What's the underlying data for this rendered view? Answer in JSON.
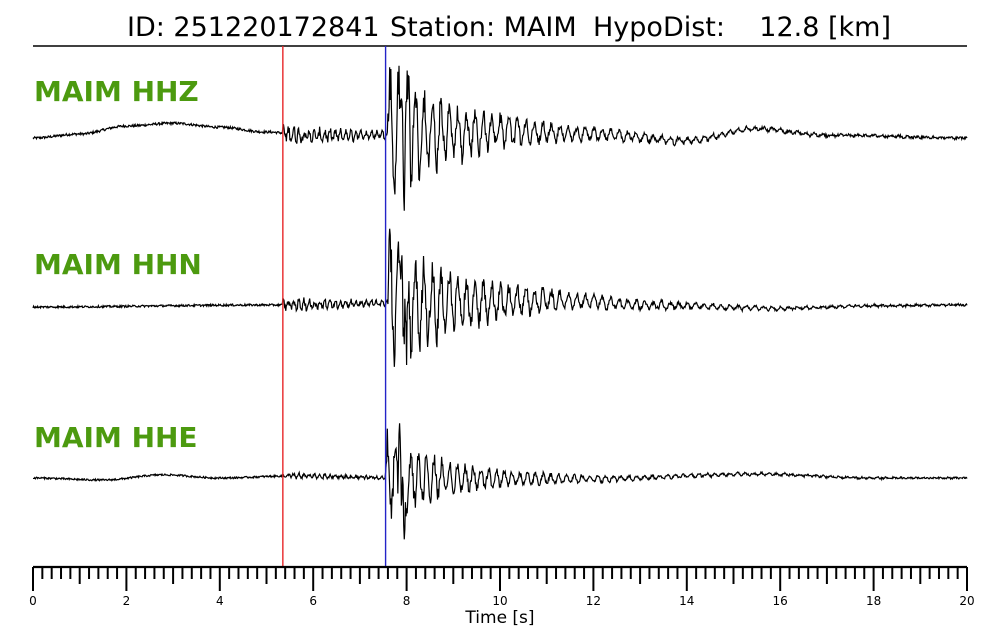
{
  "title": {
    "id_text": "ID: 251220172841",
    "station_text": "Station: MAIM",
    "hypodist_text": "HypoDist:    12.8 [km]"
  },
  "colors": {
    "label": "#4c9a0f",
    "trace": "#000000",
    "p_pick": "#e8262a",
    "s_pick": "#2323c8"
  },
  "chart_data": {
    "type": "line",
    "xlabel": "Time [s]",
    "xlim": [
      0,
      20
    ],
    "major_ticks": [
      0,
      2,
      4,
      6,
      8,
      10,
      12,
      14,
      16,
      18,
      20
    ],
    "minor_tick_step": 0.2,
    "grid": false,
    "picks": [
      {
        "name": "P",
        "time": 5.35,
        "color": "#e8262a"
      },
      {
        "name": "S",
        "time": 7.55,
        "color": "#2323c8"
      }
    ],
    "series": [
      {
        "name": "MAIM HHZ",
        "noise_level": 0.06,
        "long_period": [
          [
            0,
            -0.05
          ],
          [
            1,
            0.05
          ],
          [
            2,
            0.25
          ],
          [
            3,
            0.32
          ],
          [
            4,
            0.22
          ],
          [
            5,
            0.1
          ],
          [
            6,
            0.0
          ],
          [
            8,
            0.05
          ],
          [
            10,
            0.12
          ],
          [
            12,
            0.05
          ],
          [
            14,
            -0.12
          ],
          [
            15.5,
            0.18
          ],
          [
            17,
            0.02
          ],
          [
            20,
            -0.05
          ]
        ],
        "p_amp": 0.25,
        "s_onset": 7.6,
        "s_amp": 1.6,
        "s_decay": 1.2,
        "s_freq": 5.5,
        "peaks": [
          [
            7.9,
            2.0
          ],
          [
            7.95,
            -1.0
          ],
          [
            8.05,
            0.8
          ]
        ]
      },
      {
        "name": "MAIM HHN",
        "noise_level": 0.05,
        "long_period": [
          [
            0,
            -0.05
          ],
          [
            5,
            0.0
          ],
          [
            8,
            0.05
          ],
          [
            11.5,
            0.12
          ],
          [
            13,
            0.0
          ],
          [
            16,
            -0.08
          ],
          [
            18,
            -0.02
          ],
          [
            20,
            0.0
          ]
        ],
        "p_amp": 0.18,
        "s_onset": 7.6,
        "s_amp": 1.5,
        "s_decay": 1.4,
        "s_freq": 5.5,
        "peaks": [
          [
            7.9,
            1.8
          ],
          [
            8.0,
            -2.1
          ]
        ]
      },
      {
        "name": "MAIM HHE",
        "noise_level": 0.045,
        "long_period": [
          [
            0,
            0.0
          ],
          [
            1.5,
            -0.05
          ],
          [
            2.8,
            0.08
          ],
          [
            4,
            0.0
          ],
          [
            5.5,
            0.05
          ],
          [
            8,
            0.0
          ],
          [
            12,
            -0.02
          ],
          [
            15.5,
            0.1
          ],
          [
            18,
            0.0
          ],
          [
            20,
            0.0
          ]
        ],
        "p_amp": 0.08,
        "s_onset": 7.55,
        "s_amp": 1.0,
        "s_decay": 1.0,
        "s_freq": 6.0,
        "peaks": [
          [
            7.85,
            2.1
          ],
          [
            7.9,
            -0.9
          ],
          [
            7.95,
            -1.8
          ]
        ]
      }
    ]
  }
}
